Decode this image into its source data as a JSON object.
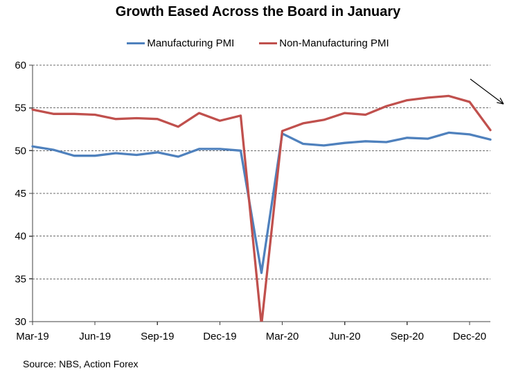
{
  "chart_data": {
    "type": "line",
    "title": "Growth Eased Across the Board in January",
    "source": "Source: NBS, Action Forex",
    "x": [
      "Mar-19",
      "Apr-19",
      "May-19",
      "Jun-19",
      "Jul-19",
      "Aug-19",
      "Sep-19",
      "Oct-19",
      "Nov-19",
      "Dec-19",
      "Jan-20",
      "Feb-20",
      "Mar-20",
      "Apr-20",
      "May-20",
      "Jun-20",
      "Jul-20",
      "Aug-20",
      "Sep-20",
      "Oct-20",
      "Nov-20",
      "Dec-20",
      "Jan-21"
    ],
    "x_tick_labels": [
      "Mar-19",
      "Jun-19",
      "Sep-19",
      "Dec-19",
      "Mar-20",
      "Jun-20",
      "Sep-20",
      "Dec-20"
    ],
    "x_tick_step": 3,
    "series": [
      {
        "name": "Manufacturing PMI",
        "color": "#4F81BD",
        "values": [
          50.5,
          50.1,
          49.4,
          49.4,
          49.7,
          49.5,
          49.8,
          49.3,
          50.2,
          50.2,
          50.0,
          35.7,
          52.0,
          50.8,
          50.6,
          50.9,
          51.1,
          51.0,
          51.5,
          51.4,
          52.1,
          51.9,
          51.3
        ]
      },
      {
        "name": "Non-Manufacturing PMI",
        "color": "#C0504D",
        "values": [
          54.8,
          54.3,
          54.3,
          54.2,
          53.7,
          53.8,
          53.7,
          52.8,
          54.4,
          53.5,
          54.1,
          29.6,
          52.3,
          53.2,
          53.6,
          54.4,
          54.2,
          55.2,
          55.9,
          56.2,
          56.4,
          55.7,
          52.4
        ]
      }
    ],
    "xlabel": "",
    "ylabel": "",
    "ylim": [
      30,
      60
    ],
    "y_ticks": [
      30,
      35,
      40,
      45,
      50,
      55,
      60
    ],
    "grid": "horizontal-dashed",
    "legend_position": "top-center",
    "annotation": {
      "type": "arrow",
      "direction": "down-right"
    },
    "axis_color": "#404040",
    "gridline_color": "#6b6b6b",
    "text_color": "#000000"
  }
}
